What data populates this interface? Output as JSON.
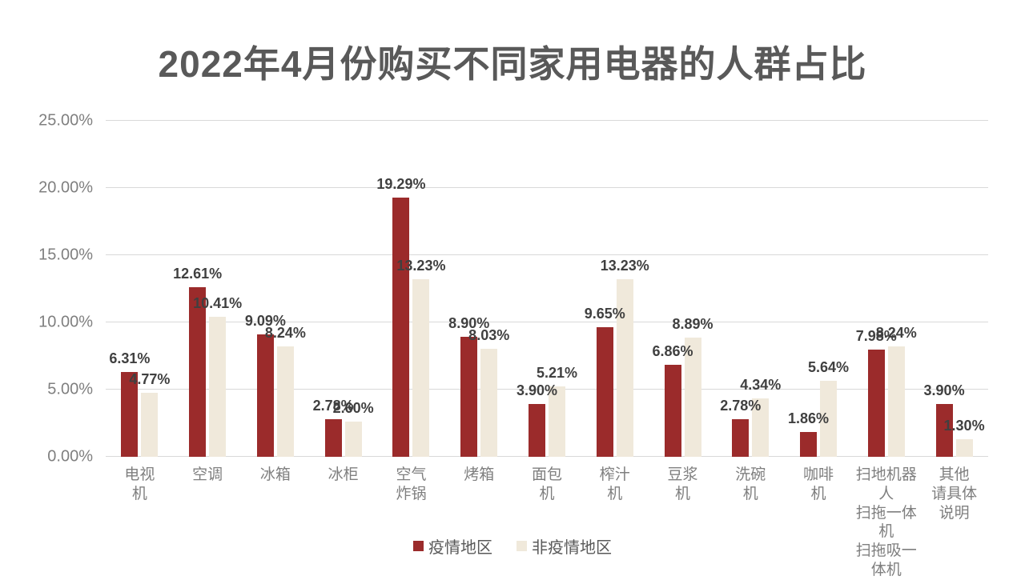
{
  "chart_data": {
    "type": "bar",
    "title": "2022年4月份购买不同家用电器的人群占比",
    "categories": [
      "电视机",
      "空调",
      "冰箱",
      "冰柜",
      "空气炸锅",
      "烤箱",
      "面包机",
      "榨汁机",
      "豆浆机",
      "洗碗机",
      "咖啡机",
      "扫地机器人扫拖一体机扫拖吸一体机",
      "其他请具体说明"
    ],
    "category_display": [
      "电视\n机",
      "空调",
      "冰箱",
      "冰柜",
      "空气\n炸锅",
      "烤箱",
      "面包\n机",
      "榨汁\n机",
      "豆浆\n机",
      "洗碗\n机",
      "咖啡\n机",
      "扫地机器人\n扫拖一体机\n扫拖吸一体机",
      "其他\n请具体\n说明"
    ],
    "series": [
      {
        "name": "疫情地区",
        "color": "#9b2b2b",
        "values": [
          6.31,
          12.61,
          9.09,
          2.78,
          19.29,
          8.9,
          3.9,
          9.65,
          6.86,
          2.78,
          1.86,
          7.98,
          3.9
        ],
        "labels": [
          "6.31%",
          "12.61%",
          "9.09%",
          "2.78%",
          "19.29%",
          "8.90%",
          "3.90%",
          "9.65%",
          "6.86%",
          "2.78%",
          "1.86%",
          "7.98%",
          "3.90%"
        ]
      },
      {
        "name": "非疫情地区",
        "color": "#f0e9db",
        "values": [
          4.77,
          10.41,
          8.24,
          2.6,
          13.23,
          8.03,
          5.21,
          13.23,
          8.89,
          4.34,
          5.64,
          8.24,
          1.3
        ],
        "labels": [
          "4.77%",
          "10.41%",
          "8.24%",
          "2.60%",
          "13.23%",
          "8.03%",
          "5.21%",
          "13.23%",
          "8.89%",
          "4.34%",
          "5.64%",
          "8.24%",
          "1.30%"
        ]
      }
    ],
    "y_axis": {
      "min": 0,
      "max": 25,
      "step": 5,
      "ticks": [
        "0.00%",
        "5.00%",
        "10.00%",
        "15.00%",
        "20.00%",
        "25.00%"
      ]
    },
    "grid": true,
    "legend_position": "bottom",
    "colors": {
      "title_text": "#595959",
      "data_label_text": "#404040",
      "axis_text": "#7f7f7f",
      "gridline": "#d9d9d9",
      "background": "#ffffff"
    }
  }
}
